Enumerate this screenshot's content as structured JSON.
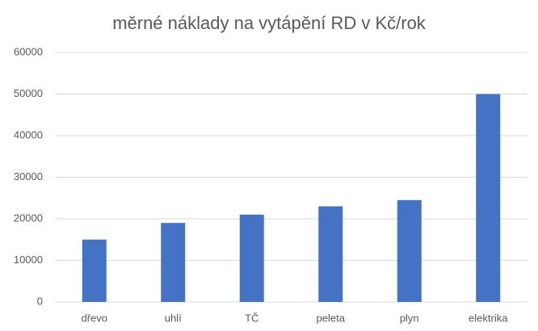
{
  "chart_data": {
    "type": "bar",
    "title": "měrné náklady na vytápění RD v Kč/rok",
    "categories": [
      "dřevo",
      "uhlí",
      "TČ",
      "peleta",
      "plyn",
      "elektrika"
    ],
    "values": [
      15000,
      19000,
      21000,
      23000,
      24500,
      50000
    ],
    "color": "#4472c4",
    "ylim": [
      0,
      60000
    ],
    "yticks": [
      0,
      10000,
      20000,
      30000,
      40000,
      50000,
      60000
    ],
    "grid": true
  }
}
